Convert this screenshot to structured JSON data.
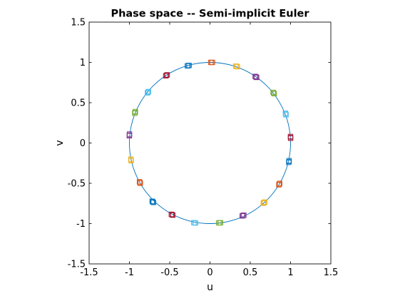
{
  "chart_data": {
    "type": "scatter",
    "title": "Phase space -- Semi-implicit Euler",
    "xlabel": "u",
    "ylabel": "v",
    "xlim": [
      -1.5,
      1.5
    ],
    "ylim": [
      -1.5,
      1.5
    ],
    "xticks": [
      "-1.5",
      "-1",
      "-0.5",
      "0",
      "0.5",
      "1",
      "1.5"
    ],
    "yticks": [
      "-1.5",
      "-1",
      "-0.5",
      "0",
      "0.5",
      "1",
      "1.5"
    ],
    "grid": false,
    "legend": "none",
    "orbit": {
      "shape": "unit circle",
      "color": "#0072bd",
      "center": [
        0,
        0
      ],
      "radius": 1
    },
    "markers": [
      {
        "u": 0.02,
        "v": 1.0,
        "color": "#d95319"
      },
      {
        "u": 0.33,
        "v": 0.95,
        "color": "#edb120"
      },
      {
        "u": 0.57,
        "v": 0.82,
        "color": "#7e2f8e"
      },
      {
        "u": 0.79,
        "v": 0.62,
        "color": "#77ac30"
      },
      {
        "u": 0.94,
        "v": 0.36,
        "color": "#4dbeee"
      },
      {
        "u": 1.0,
        "v": 0.07,
        "color": "#a2142f"
      },
      {
        "u": 0.98,
        "v": -0.23,
        "color": "#0072bd"
      },
      {
        "u": 0.86,
        "v": -0.51,
        "color": "#d95319"
      },
      {
        "u": 0.67,
        "v": -0.74,
        "color": "#edb120"
      },
      {
        "u": 0.41,
        "v": -0.9,
        "color": "#7e2f8e"
      },
      {
        "u": 0.12,
        "v": -0.99,
        "color": "#77ac30"
      },
      {
        "u": -0.19,
        "v": -0.99,
        "color": "#4dbeee"
      },
      {
        "u": -0.47,
        "v": -0.89,
        "color": "#a2142f"
      },
      {
        "u": -0.71,
        "v": -0.73,
        "color": "#0072bd"
      },
      {
        "u": -0.87,
        "v": -0.49,
        "color": "#d95319"
      },
      {
        "u": -0.98,
        "v": -0.21,
        "color": "#edb120"
      },
      {
        "u": -1.0,
        "v": 0.1,
        "color": "#7e2f8e"
      },
      {
        "u": -0.93,
        "v": 0.38,
        "color": "#77ac30"
      },
      {
        "u": -0.77,
        "v": 0.63,
        "color": "#4dbeee"
      },
      {
        "u": -0.54,
        "v": 0.84,
        "color": "#a2142f"
      },
      {
        "u": -0.27,
        "v": 0.96,
        "color": "#0072bd"
      }
    ]
  }
}
